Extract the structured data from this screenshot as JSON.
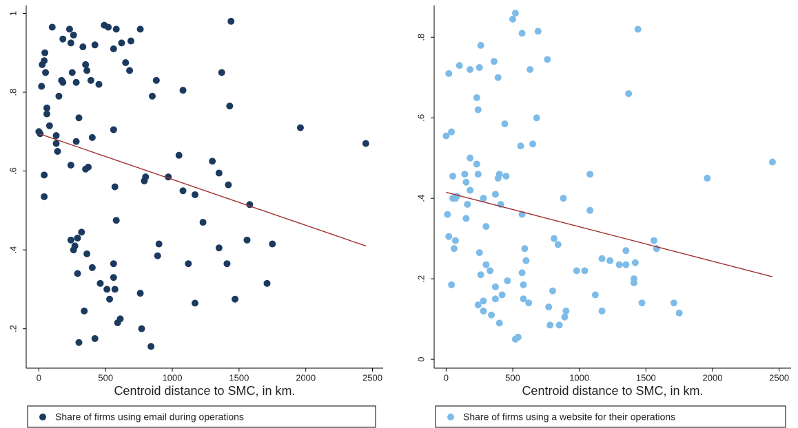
{
  "chart_data": [
    {
      "type": "scatter",
      "x_label": "Centroid distance to SMC, in km.",
      "x": [
        0,
        10,
        20,
        25,
        40,
        50,
        45,
        60,
        60,
        80,
        100,
        40,
        40,
        130,
        130,
        140,
        150,
        180,
        170,
        180,
        230,
        240,
        260,
        250,
        280,
        240,
        280,
        300,
        330,
        350,
        360,
        390,
        420,
        450,
        400,
        350,
        370,
        490,
        520,
        560,
        580,
        620,
        650,
        690,
        680,
        760,
        560,
        570,
        580,
        240,
        260,
        270,
        290,
        320,
        360,
        400,
        290,
        340,
        300,
        420,
        460,
        510,
        530,
        560,
        560,
        570,
        590,
        610,
        760,
        770,
        840,
        850,
        880,
        890,
        900,
        790,
        800,
        970,
        1050,
        1080,
        1080,
        1120,
        1170,
        1170,
        1230,
        1300,
        1350,
        1350,
        1370,
        1420,
        1410,
        1430,
        1440,
        1470,
        1560,
        1580,
        1710,
        1750,
        1960,
        2450
      ],
      "series": [
        {
          "name": "Share of firms using email during operations",
          "color": "#1b3a5e",
          "values": [
            0.7,
            0.695,
            0.815,
            0.87,
            0.88,
            0.85,
            0.9,
            0.76,
            0.745,
            0.715,
            0.965,
            0.59,
            0.535,
            0.69,
            0.67,
            0.65,
            0.79,
            0.935,
            0.83,
            0.825,
            0.96,
            0.925,
            0.945,
            0.85,
            0.825,
            0.615,
            0.675,
            0.735,
            0.915,
            0.87,
            0.855,
            0.83,
            0.92,
            0.82,
            0.685,
            0.605,
            0.61,
            0.97,
            0.965,
            0.91,
            0.96,
            0.925,
            0.875,
            0.93,
            0.855,
            0.96,
            0.705,
            0.56,
            0.475,
            0.425,
            0.4,
            0.41,
            0.43,
            0.445,
            0.39,
            0.355,
            0.34,
            0.245,
            0.165,
            0.175,
            0.315,
            0.3,
            0.275,
            0.365,
            0.33,
            0.3,
            0.215,
            0.225,
            0.29,
            0.2,
            0.155,
            0.79,
            0.83,
            0.385,
            0.415,
            0.575,
            0.585,
            0.585,
            0.64,
            0.805,
            0.55,
            0.365,
            0.54,
            0.265,
            0.47,
            0.625,
            0.595,
            0.405,
            0.85,
            0.565,
            0.365,
            0.765,
            0.98,
            0.275,
            0.425,
            0.515,
            0.315,
            0.415,
            0.71,
            0.67
          ]
        }
      ],
      "fit": {
        "x": [
          0,
          2450
        ],
        "values": [
          0.695,
          0.41
        ],
        "color": "#a03030"
      },
      "xlim": [
        -95,
        2580
      ],
      "ylim": [
        0.1,
        1.02
      ],
      "xticks": [
        0,
        500,
        1000,
        1500,
        2000,
        2500
      ],
      "yticks": [
        {
          "value": 0.2,
          "label": ".2"
        },
        {
          "value": 0.4,
          "label": ".4"
        },
        {
          "value": 0.6,
          "label": ".6"
        },
        {
          "value": 0.8,
          "label": ".8"
        },
        1
      ]
    },
    {
      "type": "scatter",
      "x_label": "Centroid distance to SMC, in km.",
      "x": [
        0,
        20,
        40,
        40,
        10,
        20,
        50,
        50,
        60,
        70,
        80,
        70,
        100,
        140,
        150,
        150,
        160,
        180,
        180,
        180,
        230,
        240,
        230,
        250,
        260,
        240,
        250,
        260,
        240,
        280,
        280,
        280,
        300,
        300,
        330,
        340,
        360,
        370,
        370,
        370,
        390,
        390,
        400,
        400,
        410,
        420,
        440,
        450,
        460,
        500,
        520,
        520,
        540,
        560,
        570,
        570,
        570,
        580,
        580,
        590,
        600,
        620,
        630,
        650,
        680,
        690,
        760,
        770,
        780,
        800,
        810,
        840,
        850,
        880,
        890,
        900,
        980,
        1040,
        1080,
        1080,
        1120,
        1170,
        1170,
        1230,
        1300,
        1350,
        1350,
        1370,
        1410,
        1410,
        1420,
        1440,
        1470,
        1560,
        1580,
        1710,
        1750,
        1960,
        2450
      ],
      "series": [
        {
          "name": "Share of firms using a website for their operations",
          "color": "#7dbbe8",
          "values": [
            0.555,
            0.71,
            0.565,
            0.185,
            0.36,
            0.305,
            0.455,
            0.4,
            0.275,
            0.295,
            0.405,
            0.4,
            0.73,
            0.46,
            0.44,
            0.35,
            0.385,
            0.72,
            0.5,
            0.42,
            0.65,
            0.62,
            0.485,
            0.725,
            0.78,
            0.46,
            0.265,
            0.21,
            0.135,
            0.145,
            0.12,
            0.4,
            0.33,
            0.235,
            0.22,
            0.11,
            0.74,
            0.18,
            0.15,
            0.41,
            0.7,
            0.45,
            0.46,
            0.09,
            0.385,
            0.16,
            0.585,
            0.455,
            0.195,
            0.845,
            0.86,
            0.05,
            0.055,
            0.53,
            0.81,
            0.36,
            0.215,
            0.185,
            0.15,
            0.275,
            0.245,
            0.14,
            0.72,
            0.535,
            0.6,
            0.815,
            0.745,
            0.13,
            0.085,
            0.17,
            0.3,
            0.285,
            0.085,
            0.4,
            0.105,
            0.12,
            0.22,
            0.22,
            0.46,
            0.37,
            0.16,
            0.25,
            0.12,
            0.245,
            0.235,
            0.235,
            0.27,
            0.66,
            0.2,
            0.19,
            0.24,
            0.82,
            0.14,
            0.295,
            0.275,
            0.14,
            0.115,
            0.45,
            0.49
          ]
        }
      ],
      "fit": {
        "x": [
          0,
          2450
        ],
        "values": [
          0.415,
          0.205
        ],
        "color": "#a03030"
      },
      "xlim": [
        -90,
        2590
      ],
      "ylim": [
        -0.022,
        0.879
      ],
      "xticks": [
        0,
        500,
        1000,
        1500,
        2000,
        2500
      ],
      "yticks": [
        0,
        {
          "value": 0.2,
          "label": ".2"
        },
        {
          "value": 0.4,
          "label": ".4"
        },
        {
          "value": 0.6,
          "label": ".6"
        },
        {
          "value": 0.8,
          "label": ".8"
        }
      ]
    }
  ]
}
